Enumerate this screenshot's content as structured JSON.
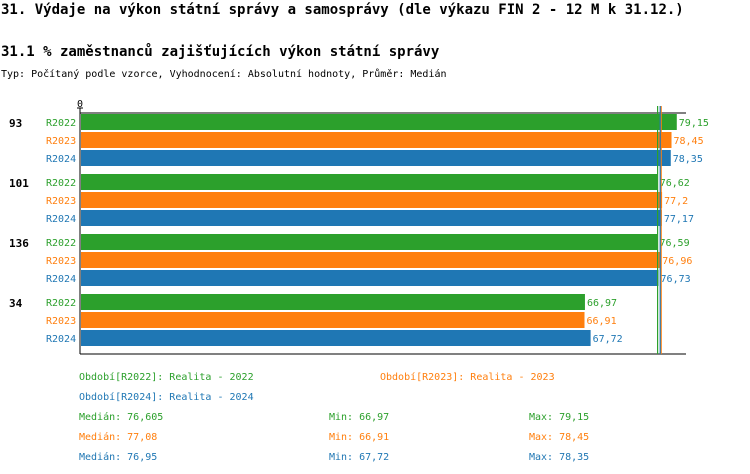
{
  "title": "31. Výdaje na výkon státní správy a samosprávy (dle výkazu FIN 2 - 12 M k 31.12.)",
  "subtitle": "31.1 % zaměstnanců zajišťujících výkon státní správy",
  "type_line": "Typ: Počítaný podle vzorce, Vyhodnocení: Absolutní hodnoty, Průměr: Medián",
  "colors": {
    "R2022": "#2ca02c",
    "R2023": "#ff7f0e",
    "R2024": "#1f77b4"
  },
  "chart_data": {
    "type": "bar",
    "orientation": "horizontal",
    "axis_zero_label": "0",
    "categories": [
      "93",
      "101",
      "136",
      "34"
    ],
    "series": [
      {
        "name": "R2022",
        "values": [
          79.15,
          76.62,
          76.59,
          66.97
        ],
        "labels": [
          "79,15",
          "76,62",
          "76,59",
          "66,97"
        ]
      },
      {
        "name": "R2023",
        "values": [
          78.45,
          77.2,
          76.96,
          66.91
        ],
        "labels": [
          "78,45",
          "77,2",
          "76,96",
          "66,91"
        ]
      },
      {
        "name": "R2024",
        "values": [
          78.35,
          77.17,
          76.73,
          67.72
        ],
        "labels": [
          "78,35",
          "77,17",
          "76,73",
          "67,72"
        ]
      }
    ],
    "medians": [
      76.605,
      77.08,
      76.95
    ],
    "xlim": [
      0,
      80.2
    ]
  },
  "legend": {
    "periods": [
      {
        "key": "R2022",
        "text": "Období[R2022]: Realita - 2022"
      },
      {
        "key": "R2023",
        "text": "Období[R2023]: Realita - 2023"
      },
      {
        "key": "R2024",
        "text": "Období[R2024]: Realita - 2024"
      }
    ],
    "stats": [
      {
        "key": "R2022",
        "median": "Medián: 76,605",
        "min": "Min: 66,97",
        "max": "Max: 79,15"
      },
      {
        "key": "R2023",
        "median": "Medián: 77,08",
        "min": "Min: 66,91",
        "max": "Max: 78,45"
      },
      {
        "key": "R2024",
        "median": "Medián: 76,95",
        "min": "Min: 67,72",
        "max": "Max: 78,35"
      }
    ]
  }
}
